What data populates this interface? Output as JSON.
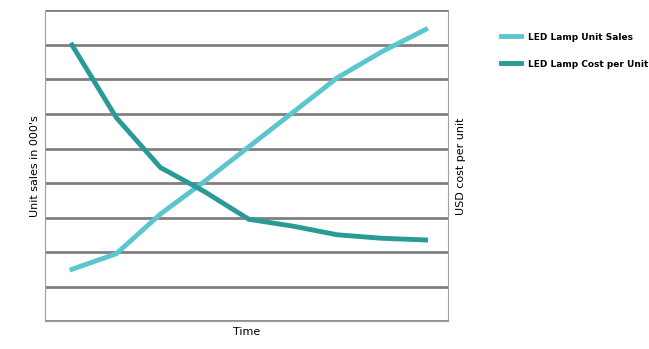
{
  "chart_data": {
    "type": "line",
    "x": [
      1,
      2,
      3,
      4,
      5,
      6,
      7,
      8,
      9
    ],
    "xlim": [
      0.4,
      9.5
    ],
    "xticks": [],
    "x_label": "Time",
    "y_label": "Unit sales in 000's",
    "y2_label": "USD cost per unit",
    "ylim": [
      0,
      9
    ],
    "yticks": [
      0,
      1,
      2,
      3,
      4,
      5,
      6,
      7,
      8,
      9
    ],
    "y2lim": [
      0,
      9
    ],
    "y2ticks": [],
    "grid": true,
    "tick_labels": false,
    "legend": "upper left",
    "series": [
      {
        "name": "LED Lamp Unit Sales",
        "color": "#5cc6d0",
        "values": [
          1.5,
          1.95,
          3.1,
          4.05,
          5.05,
          6.05,
          7.05,
          7.8,
          8.45
        ]
      },
      {
        "name": "LED Lamp Cost per Unit",
        "color": "#2a9a96",
        "axis": "y2",
        "values": [
          8.0,
          5.9,
          4.45,
          3.75,
          2.95,
          2.75,
          2.5,
          2.4,
          2.35
        ]
      }
    ]
  }
}
